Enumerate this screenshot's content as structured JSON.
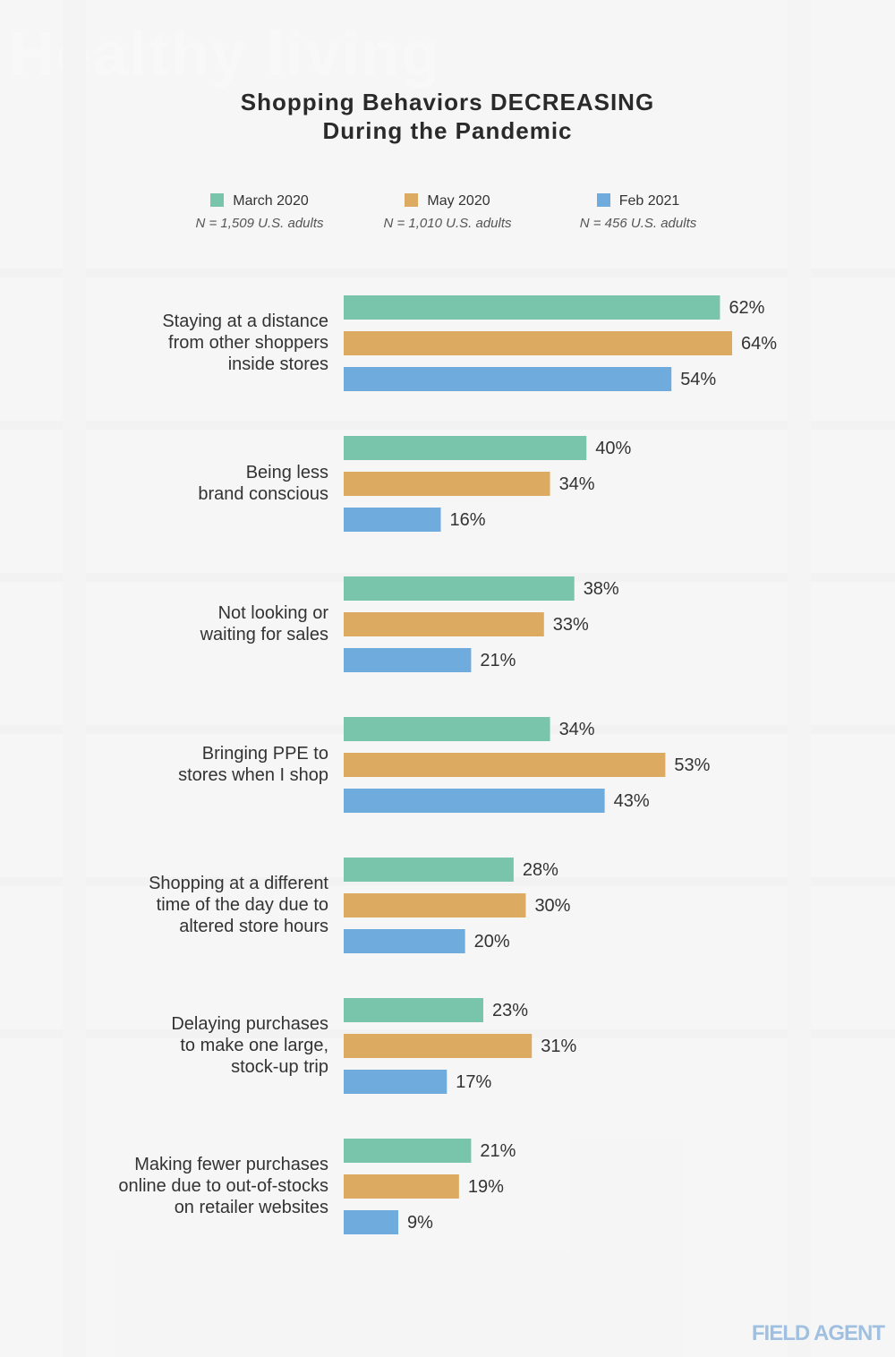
{
  "title_line1": "Shopping Behaviors DECREASING",
  "title_line2": "During the Pandemic",
  "legend": [
    {
      "label": "March 2020",
      "n": "N = 1,509 U.S. adults",
      "color": "#79c5ab"
    },
    {
      "label": "May 2020",
      "n": "N = 1,010 U.S. adults",
      "color": "#dcab61"
    },
    {
      "label": "Feb 2021",
      "n": "N = 456 U.S. adults",
      "color": "#6fabdc"
    }
  ],
  "brand": "FIELD AGENT",
  "background_text": "Healthy living",
  "chart_data": {
    "type": "bar",
    "orientation": "horizontal",
    "categories": [
      [
        "Staying at a distance",
        "from other shoppers",
        "inside stores"
      ],
      [
        "Being less",
        "brand conscious"
      ],
      [
        "Not looking or",
        "waiting for sales"
      ],
      [
        "Bringing PPE to",
        "stores when I shop"
      ],
      [
        "Shopping at a different",
        "time of the day due to",
        "altered store hours"
      ],
      [
        "Delaying purchases",
        "to make one large,",
        "stock-up trip"
      ],
      [
        "Making fewer purchases",
        "online due to out-of-stocks",
        "on retailer websites"
      ]
    ],
    "series": [
      {
        "name": "March 2020",
        "color": "#79c5ab",
        "values": [
          62,
          40,
          38,
          34,
          28,
          23,
          21
        ]
      },
      {
        "name": "May 2020",
        "color": "#dcab61",
        "values": [
          64,
          34,
          33,
          53,
          30,
          31,
          19
        ]
      },
      {
        "name": "Feb 2021",
        "color": "#6fabdc",
        "values": [
          54,
          16,
          21,
          43,
          20,
          17,
          9
        ]
      }
    ],
    "value_suffix": "%",
    "xlim": [
      0,
      64
    ]
  }
}
